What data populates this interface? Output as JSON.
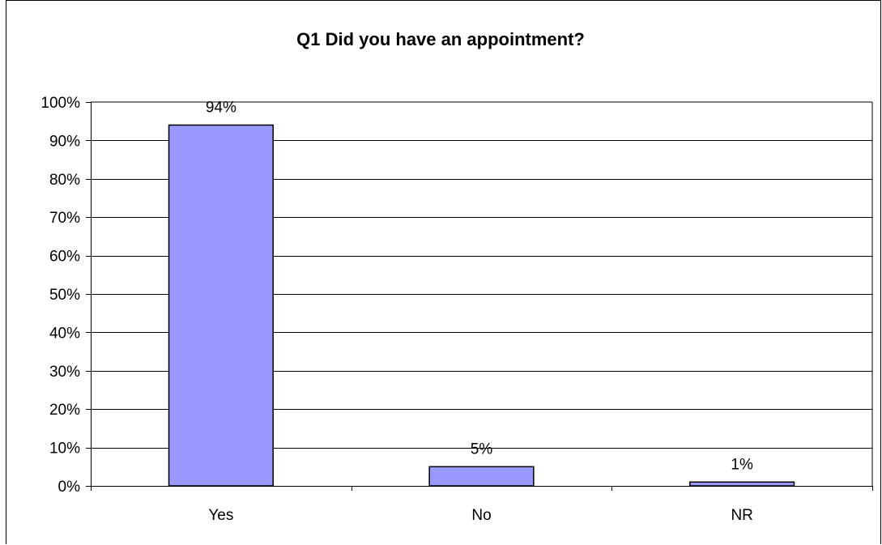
{
  "chart_data": {
    "type": "bar",
    "title": "Q1 Did you have an appointment?",
    "categories": [
      "Yes",
      "No",
      "NR"
    ],
    "values": [
      94,
      5,
      1
    ],
    "data_labels": [
      "94%",
      "5%",
      "1%"
    ],
    "xlabel": "",
    "ylabel": "",
    "ylim": [
      0,
      100
    ],
    "y_tick_values": [
      0,
      10,
      20,
      30,
      40,
      50,
      60,
      70,
      80,
      90,
      100
    ],
    "y_tick_labels": [
      "0%",
      "10%",
      "20%",
      "30%",
      "40%",
      "50%",
      "60%",
      "70%",
      "80%",
      "90%",
      "100%"
    ],
    "grid": true,
    "legend": "none",
    "colors": {
      "bar_fill": "#9999ff",
      "bar_stroke": "#000000",
      "grid": "#000000",
      "axis": "#000000",
      "text": "#000000"
    }
  }
}
